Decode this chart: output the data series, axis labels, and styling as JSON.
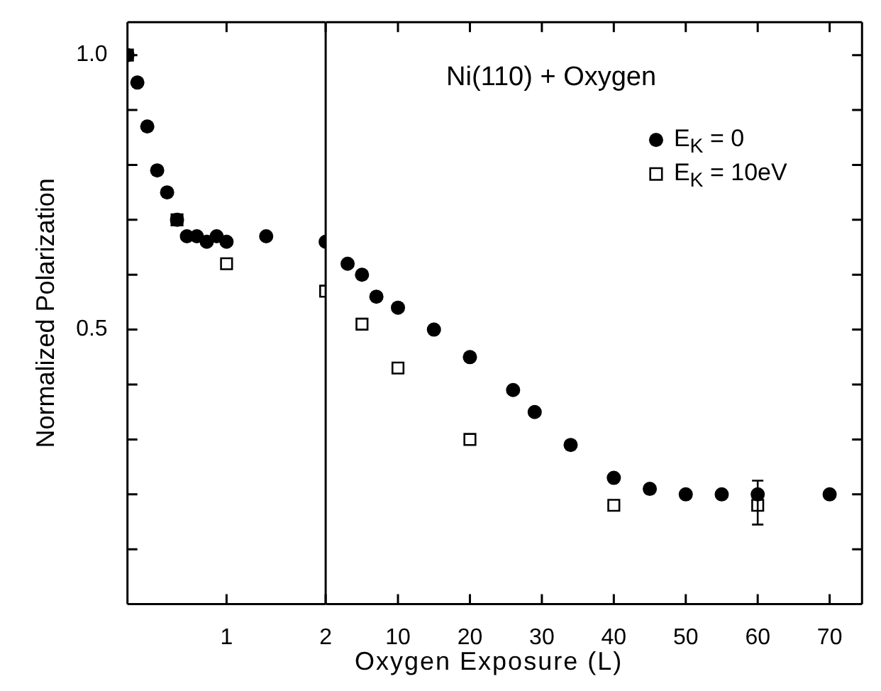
{
  "chart_data": [
    {
      "type": "scatter",
      "ylabel": "Normalized Polarization",
      "xlim": [
        0,
        2
      ],
      "xticks": [
        1,
        2
      ],
      "ylim": [
        0,
        1.06
      ],
      "yticks": [
        {
          "value": 0.1,
          "label": null
        },
        {
          "value": 0.2,
          "label": null
        },
        {
          "value": 0.3,
          "label": null
        },
        {
          "value": 0.4,
          "label": null
        },
        0.5,
        {
          "value": 0.6,
          "label": null
        },
        {
          "value": 0.7,
          "label": null
        },
        {
          "value": 0.8,
          "label": null
        },
        {
          "value": 0.9,
          "label": null
        },
        {
          "value": 1,
          "label": "1.0"
        }
      ],
      "grid": false,
      "legend": false,
      "series": [
        {
          "color": "#000000",
          "marker": "circle",
          "x": [
            0,
            0.1,
            0.2,
            0.3,
            0.4,
            0.5,
            0.6,
            0.7,
            0.8,
            0.9,
            1.0,
            1.4,
            2.0
          ],
          "values": [
            1.0,
            0.95,
            0.87,
            0.79,
            0.75,
            0.7,
            0.67,
            0.67,
            0.66,
            0.67,
            0.66,
            0.67,
            0.66
          ]
        },
        {
          "color": "#000000",
          "marker": "square",
          "x": [
            0,
            0.5,
            1,
            2
          ],
          "values": [
            1.0,
            0.7,
            0.62,
            0.57
          ]
        }
      ]
    },
    {
      "type": "scatter",
      "title": "Ni(110) + Oxygen",
      "xlabel": "Oxygen Exposure (L)",
      "xlim": [
        0,
        74.5
      ],
      "xticks": [
        10,
        20,
        30,
        40,
        50,
        60,
        70
      ],
      "ylim": [
        0,
        1.06
      ],
      "yticks": [
        {
          "value": 0.1,
          "label": null
        },
        {
          "value": 0.2,
          "label": null
        },
        {
          "value": 0.3,
          "label": null
        },
        {
          "value": 0.4,
          "label": null
        },
        {
          "value": 0.5,
          "label": null
        },
        {
          "value": 0.6,
          "label": null
        },
        {
          "value": 0.7,
          "label": null
        },
        {
          "value": 0.8,
          "label": null
        },
        {
          "value": 0.9,
          "label": null
        },
        {
          "value": 1,
          "label": null
        }
      ],
      "grid": false,
      "legend": "top right",
      "tick_labels": "x",
      "series": [
        {
          "name": "E$_{K}$ = 0",
          "color": "#000000",
          "marker": "circle",
          "x": [
            3,
            5,
            7,
            10,
            15,
            20,
            26,
            29,
            34,
            40,
            45,
            50,
            55,
            60,
            70
          ],
          "values": [
            0.62,
            0.6,
            0.56,
            0.54,
            0.5,
            0.45,
            0.39,
            0.35,
            0.29,
            0.23,
            0.21,
            0.2,
            0.2,
            0.2,
            0.2
          ]
        },
        {
          "name": "E$_{K}$ = 10eV",
          "color": "#000000",
          "marker": "square",
          "x": [
            5,
            10,
            20,
            40,
            60
          ],
          "values": [
            0.51,
            0.43,
            0.3,
            0.18,
            0.18
          ],
          "errors": [
            null,
            null,
            null,
            null,
            [
              0.145,
              0.225
            ]
          ]
        }
      ]
    }
  ]
}
